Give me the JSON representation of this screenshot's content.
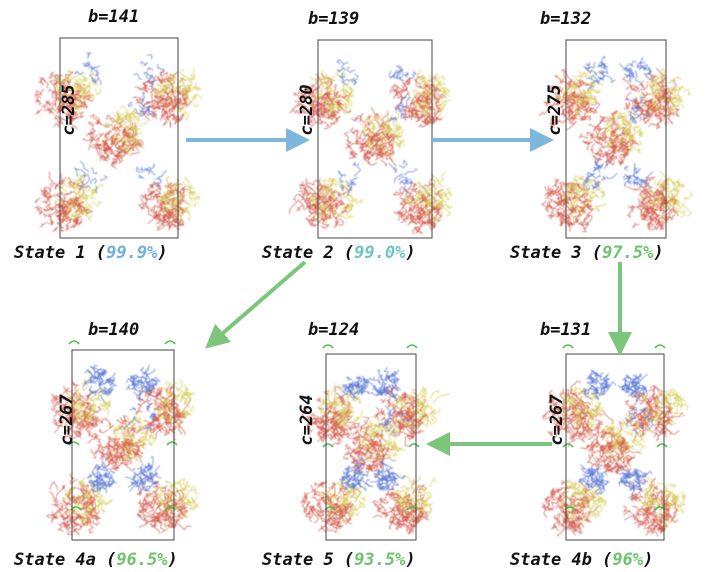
{
  "colors": {
    "blue_arrow": "#7fb6db",
    "green_arrow": "#7cc67c",
    "pct_blue": "#6fb0de",
    "pct_teal": "#6cc7c2",
    "pct_green": "#6cc46c",
    "red_protein": "#d45a4e",
    "yellow_protein": "#d7cf5a",
    "blue_protein": "#5a78d6",
    "green_protein": "#46c246",
    "cell_box": "#444444"
  },
  "panels": [
    {
      "id": "state1",
      "b": "b=141",
      "c": "c=285",
      "name": "State 1 (",
      "pct": "99.9%",
      "close": ")",
      "pct_color": "pct_blue",
      "blue_amount": "low",
      "green": false
    },
    {
      "id": "state2",
      "b": "b=139",
      "c": "c=280",
      "name": "State 2 (",
      "pct": "99.0%",
      "close": ")",
      "pct_color": "pct_teal",
      "blue_amount": "low",
      "green": false
    },
    {
      "id": "state3",
      "b": "b=132",
      "c": "c=275",
      "name": "State 3 (",
      "pct": "97.5%",
      "close": ")",
      "pct_color": "pct_green",
      "blue_amount": "mid",
      "green": false
    },
    {
      "id": "state4a",
      "b": "b=140",
      "c": "c=267",
      "name": "State 4a (",
      "pct": "96.5%",
      "close": ")",
      "pct_color": "pct_green",
      "blue_amount": "high",
      "green": true
    },
    {
      "id": "state5",
      "b": "b=124",
      "c": "c=264",
      "name": "State 5 (",
      "pct": "93.5%",
      "close": ")",
      "pct_color": "pct_green",
      "blue_amount": "high",
      "green": true
    },
    {
      "id": "state4b",
      "b": "b=131",
      "c": "c=267",
      "name": "State 4b (",
      "pct": "96%",
      "close": ")",
      "pct_color": "pct_green",
      "blue_amount": "high",
      "green": true
    }
  ],
  "arrows": [
    {
      "id": "state1-to-state2",
      "color": "blue_arrow"
    },
    {
      "id": "state2-to-state3",
      "color": "blue_arrow"
    },
    {
      "id": "state2-to-state4a",
      "color": "green_arrow"
    },
    {
      "id": "state3-to-state4b",
      "color": "green_arrow"
    },
    {
      "id": "state4b-to-state5",
      "color": "green_arrow"
    }
  ]
}
